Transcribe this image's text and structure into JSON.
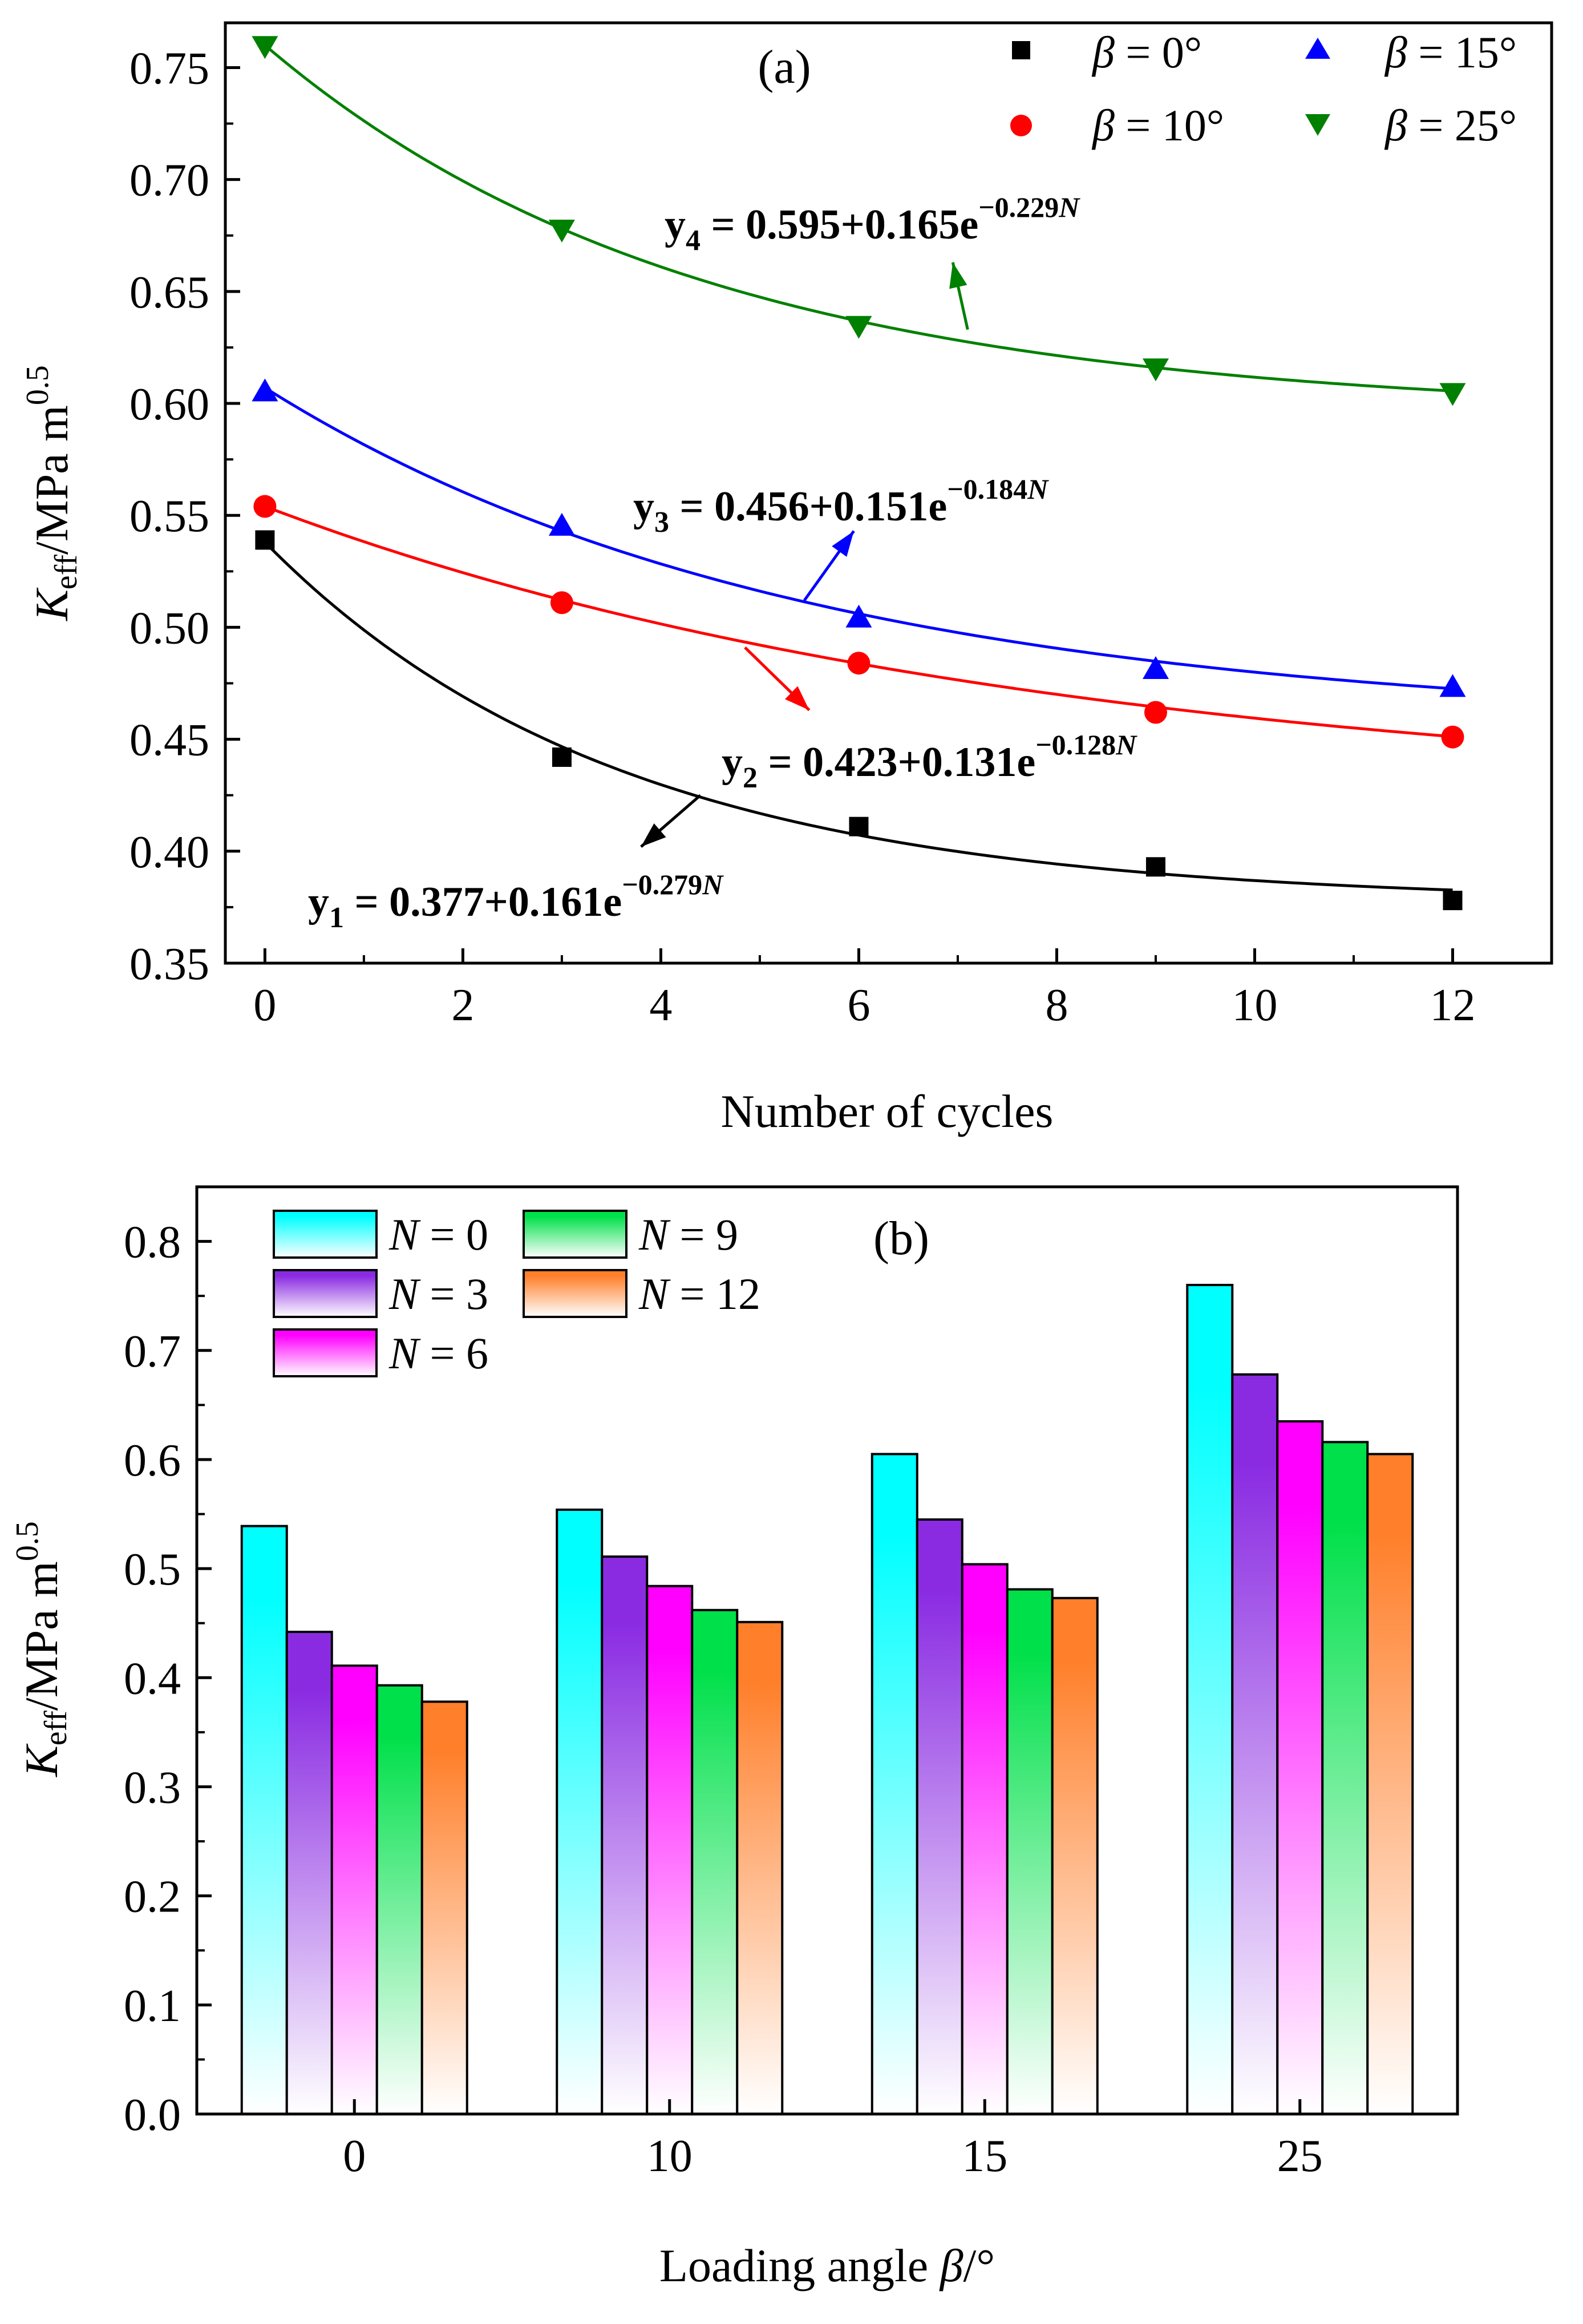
{
  "chart_data": [
    {
      "type": "scatter",
      "panel_label": "(a)",
      "xlabel": "Number of cycles",
      "ylabel": {
        "main": "K",
        "sub": "eff",
        "rest": "/MPa m",
        "sup": "0.5"
      },
      "xlim": [
        -0.4,
        13
      ],
      "ylim": [
        0.35,
        0.77
      ],
      "x_ticks": [
        0,
        2,
        4,
        6,
        8,
        10,
        12
      ],
      "x_tick_labels": [
        "0",
        "2",
        "4",
        "6",
        "8",
        "10",
        "12"
      ],
      "y_ticks": [
        0.35,
        0.4,
        0.45,
        0.5,
        0.55,
        0.6,
        0.65,
        0.7,
        0.75
      ],
      "y_tick_labels": [
        "0.35",
        "0.40",
        "0.45",
        "0.50",
        "0.55",
        "0.60",
        "0.65",
        "0.70",
        "0.75"
      ],
      "grid": false,
      "legend_position": "top-right",
      "x": [
        0,
        3,
        6,
        9,
        12
      ],
      "series": [
        {
          "name": "β = 0°",
          "legend_symbol": "β",
          "legend_value": " = 0°",
          "marker": "square",
          "color": "#000000",
          "values": [
            0.539,
            0.442,
            0.411,
            0.393,
            0.378
          ],
          "fit": {
            "a": 0.377,
            "b": 0.161,
            "c": 0.279
          }
        },
        {
          "name": "β = 10°",
          "legend_symbol": "β",
          "legend_value": " = 10°",
          "marker": "circle",
          "color": "#ff0000",
          "values": [
            0.554,
            0.511,
            0.484,
            0.462,
            0.451
          ],
          "fit": {
            "a": 0.423,
            "b": 0.131,
            "c": 0.128
          }
        },
        {
          "name": "β = 15°",
          "legend_symbol": "β",
          "legend_value": " = 15°",
          "marker": "triangle-up",
          "color": "#0000ff",
          "values": [
            0.605,
            0.545,
            0.504,
            0.481,
            0.473
          ],
          "fit": {
            "a": 0.456,
            "b": 0.151,
            "c": 0.184
          }
        },
        {
          "name": "β = 25°",
          "legend_symbol": "β",
          "legend_value": " = 25°",
          "marker": "triangle-down",
          "color": "#008000",
          "values": [
            0.76,
            0.678,
            0.635,
            0.616,
            0.605
          ],
          "fit": {
            "a": 0.595,
            "b": 0.165,
            "c": 0.229
          }
        }
      ],
      "annotations": [
        {
          "id": "y1",
          "base": "y",
          "sub": "1",
          "mid": " = 0.377+0.161e",
          "sup": "−0.279",
          "supvar": "N",
          "color": "#000000"
        },
        {
          "id": "y2",
          "base": "y",
          "sub": "2",
          "mid": " = 0.423+0.131e",
          "sup": "−0.128",
          "supvar": "N",
          "color": "#ff0000"
        },
        {
          "id": "y3",
          "base": "y",
          "sub": "3",
          "mid": " = 0.456+0.151e",
          "sup": "−0.184",
          "supvar": "N",
          "color": "#0000ff"
        },
        {
          "id": "y4",
          "base": "y",
          "sub": "4",
          "mid": " = 0.595+0.165e",
          "sup": "−0.229",
          "supvar": "N",
          "color": "#008000"
        }
      ]
    },
    {
      "type": "bar",
      "panel_label": "(b)",
      "xlabel": {
        "main": "Loading angle ",
        "symbol": "β",
        "unit": "/°"
      },
      "ylabel": {
        "main": "K",
        "sub": "eff",
        "rest": "/MPa m",
        "sup": "0.5"
      },
      "ylim": [
        0,
        0.85
      ],
      "y_ticks": [
        0.0,
        0.1,
        0.2,
        0.3,
        0.4,
        0.5,
        0.6,
        0.7,
        0.8
      ],
      "y_tick_labels": [
        "0.0",
        "0.1",
        "0.2",
        "0.3",
        "0.4",
        "0.5",
        "0.6",
        "0.7",
        "0.8"
      ],
      "grid": false,
      "legend_position": "top-left",
      "categories": [
        "0",
        "10",
        "15",
        "25"
      ],
      "series": [
        {
          "name": "N = 0",
          "legend_symbol": "N",
          "legend_value": " = 0",
          "color": "#00ffff",
          "values": [
            0.539,
            0.554,
            0.605,
            0.76
          ]
        },
        {
          "name": "N = 3",
          "legend_symbol": "N",
          "legend_value": " = 3",
          "color": "#8a2be2",
          "values": [
            0.442,
            0.511,
            0.545,
            0.678
          ]
        },
        {
          "name": "N = 6",
          "legend_symbol": "N",
          "legend_value": " = 6",
          "color": "#ff00ff",
          "values": [
            0.411,
            0.484,
            0.504,
            0.635
          ]
        },
        {
          "name": "N = 9",
          "legend_symbol": "N",
          "legend_value": " = 9",
          "color": "#00e04a",
          "values": [
            0.393,
            0.462,
            0.481,
            0.616
          ]
        },
        {
          "name": "N = 12",
          "legend_symbol": "N",
          "legend_value": " = 12",
          "color": "#ff7f2a",
          "values": [
            0.378,
            0.451,
            0.473,
            0.605
          ]
        }
      ]
    }
  ]
}
